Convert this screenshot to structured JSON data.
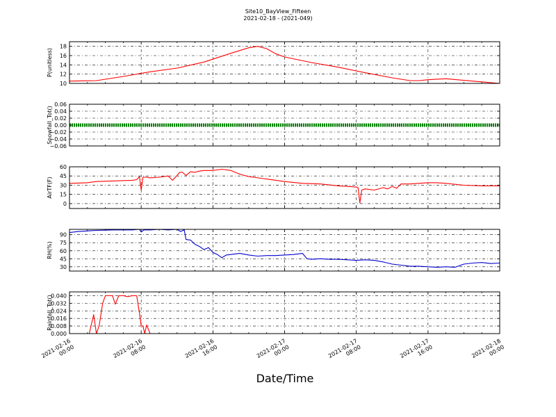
{
  "title": "Site10_BayView_Fifteen",
  "subtitle": "2021-02-18 - (2021-049)",
  "xlabel": "Date/Time",
  "x_ticks": [
    {
      "line1": "2021-02-16",
      "line2": "00:00"
    },
    {
      "line1": "2021-02-16",
      "line2": "08:00"
    },
    {
      "line1": "2021-02-16",
      "line2": "16:00"
    },
    {
      "line1": "2021-02-17",
      "line2": "00:00"
    },
    {
      "line1": "2021-02-17",
      "line2": "08:00"
    },
    {
      "line1": "2021-02-17",
      "line2": "16:00"
    },
    {
      "line1": "2021-02-18",
      "line2": "00:00"
    }
  ],
  "chart_data": [
    {
      "type": "line",
      "ylabel": "P(unitless)",
      "ylim": [
        10,
        19
      ],
      "yticks": [
        10,
        12,
        14,
        16,
        18
      ],
      "ytick_labels": [
        "10",
        "12",
        "14",
        "16",
        "18"
      ],
      "grid": true,
      "color": "#ff0000",
      "x_hours": [
        0,
        3,
        6,
        9,
        12,
        15,
        18,
        20,
        21,
        22,
        23,
        24,
        27,
        30,
        33,
        36,
        38,
        39,
        40,
        42,
        45,
        48
      ],
      "y": [
        10.5,
        10.6,
        11.5,
        12.5,
        13.3,
        14.6,
        16.5,
        17.7,
        18.0,
        17.5,
        16.4,
        15.7,
        14.5,
        13.5,
        12.3,
        11.2,
        10.6,
        10.6,
        10.8,
        11.0,
        10.5,
        10.0
      ]
    },
    {
      "type": "line",
      "ylabel": "Snowfall_Tot()",
      "ylim": [
        -0.06,
        0.06
      ],
      "yticks": [
        -0.06,
        -0.04,
        -0.02,
        0.0,
        0.02,
        0.04,
        0.06
      ],
      "ytick_labels": [
        "−0.06",
        "−0.04",
        "−0.02",
        "0.00",
        "0.02",
        "0.04",
        "0.06"
      ],
      "grid": true,
      "color": "#008000",
      "x_hours": [
        0,
        48
      ],
      "y": [
        0,
        0
      ]
    },
    {
      "type": "line",
      "ylabel": "AirTF(F)",
      "ylim": [
        -8,
        60
      ],
      "yticks": [
        0,
        15,
        30,
        45,
        60
      ],
      "ytick_labels": [
        "0",
        "15",
        "30",
        "45",
        "60"
      ],
      "grid": true,
      "color": "#ff0000",
      "x_hours": [
        0,
        2,
        3,
        5,
        7,
        7.5,
        7.8,
        8.0,
        8.2,
        8.6,
        9,
        10,
        11,
        11.5,
        12,
        12.3,
        12.6,
        13,
        13.5,
        14,
        14.5,
        15,
        16,
        17,
        18,
        19,
        20,
        22,
        24,
        26,
        28,
        30,
        32,
        32.2,
        32.4,
        32.6,
        33,
        34,
        35,
        35.5,
        36,
        36.5,
        37,
        38,
        40,
        41,
        42,
        44,
        46,
        48
      ],
      "y": [
        33,
        34,
        36,
        37,
        38,
        39,
        44,
        22,
        43,
        43,
        42,
        43,
        45,
        38,
        46,
        51,
        51,
        46,
        52,
        51,
        53,
        54,
        54,
        56,
        54,
        48,
        44,
        40,
        36,
        33,
        32,
        29,
        27,
        26,
        1,
        22,
        24,
        22,
        26,
        24,
        28,
        25,
        32,
        32,
        34,
        34,
        33,
        30,
        29,
        29
      ]
    },
    {
      "type": "line",
      "ylabel": "RH(%)",
      "ylim": [
        22,
        100
      ],
      "yticks": [
        30,
        45,
        60,
        75,
        90
      ],
      "ytick_labels": [
        "30",
        "45",
        "60",
        "75",
        "90"
      ],
      "grid": true,
      "color": "#0000cc",
      "x_hours": [
        0,
        1,
        2,
        3,
        5,
        7,
        7.8,
        8.0,
        8.3,
        9,
        10,
        11,
        12,
        12.4,
        12.8,
        13,
        13.5,
        14,
        14.5,
        15,
        15.5,
        16,
        16.5,
        17,
        17.5,
        18,
        19,
        20,
        21,
        22,
        23,
        24,
        25,
        26,
        26.5,
        27,
        28,
        29,
        30,
        31,
        32,
        33,
        34,
        35,
        36,
        37,
        38,
        39,
        40,
        41,
        42,
        43,
        44,
        45,
        46,
        47,
        48
      ],
      "y": [
        94,
        96,
        97,
        98,
        99,
        99,
        100,
        95,
        99,
        99,
        100,
        99,
        100,
        96,
        99,
        81,
        80,
        72,
        68,
        62,
        66,
        57,
        53,
        47,
        52,
        53,
        55,
        52,
        50,
        51,
        51,
        52,
        53,
        55,
        45,
        44,
        45,
        44,
        44,
        43,
        42,
        43,
        42,
        39,
        35,
        33,
        31,
        31,
        30,
        29,
        30,
        29,
        35,
        37,
        38,
        36,
        37
      ]
    },
    {
      "type": "line",
      "ylabel": "Rainfall_Tot()",
      "ylim": [
        0,
        0.044
      ],
      "yticks": [
        0.0,
        0.008,
        0.016,
        0.024,
        0.032,
        0.04
      ],
      "ytick_labels": [
        "0.000",
        "0.008",
        "0.016",
        "0.024",
        "0.032",
        "0.040"
      ],
      "grid": true,
      "color": "#ff0000",
      "x_hours": [
        0,
        2.2,
        2.7,
        3.0,
        3.3,
        3.7,
        4.0,
        4.5,
        4.8,
        5.1,
        5.5,
        6,
        6.5,
        7,
        7.3,
        7.5,
        7.8,
        8.0,
        8.2,
        8.4,
        8.6,
        9,
        48
      ],
      "y": [
        0,
        0,
        0.02,
        0,
        0.008,
        0.032,
        0.04,
        0.04,
        0.04,
        0.031,
        0.04,
        0.04,
        0.039,
        0.04,
        0.04,
        0.04,
        0.022,
        0.008,
        0.008,
        0,
        0.009,
        0,
        0
      ]
    }
  ]
}
